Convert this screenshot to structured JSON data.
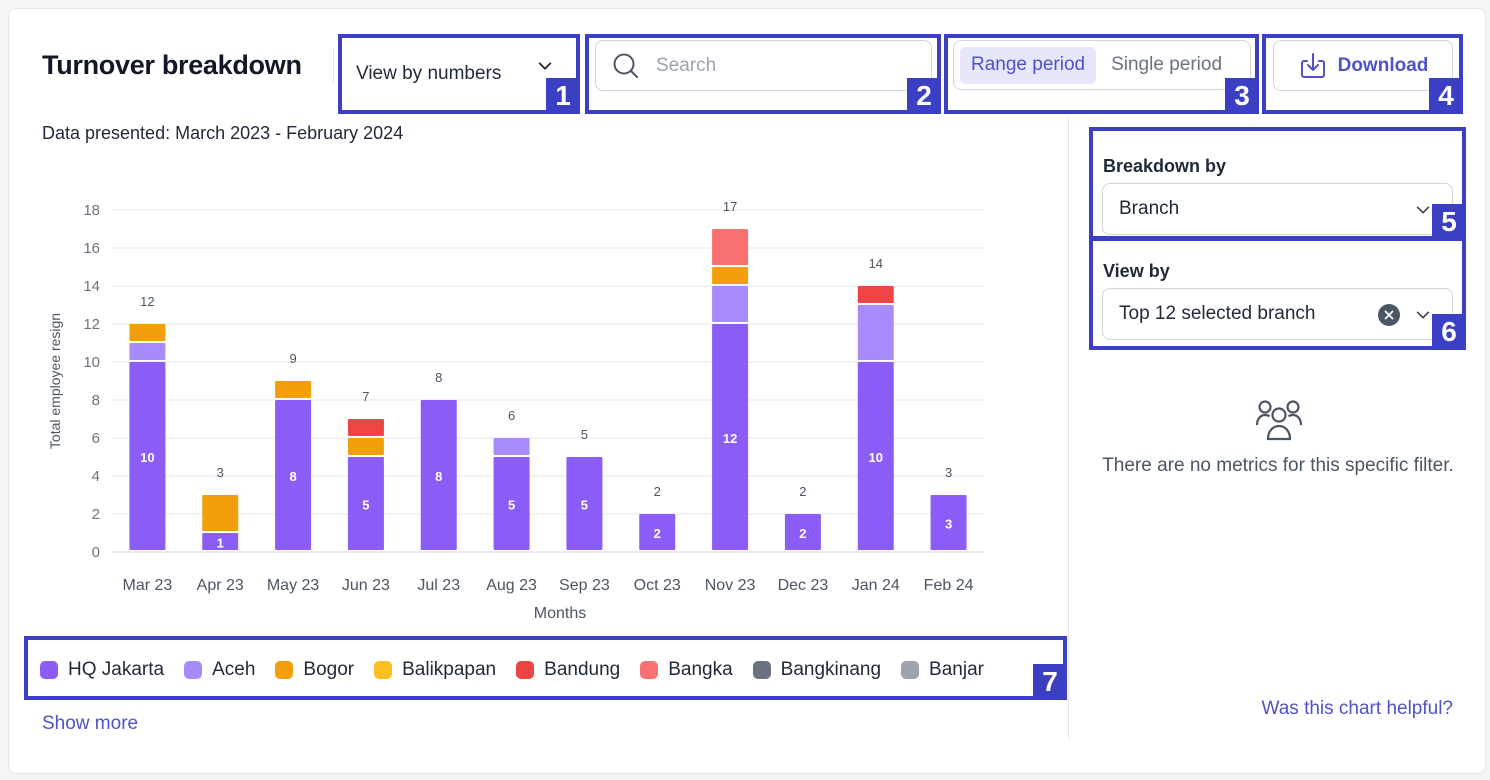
{
  "header": {
    "title": "Turnover breakdown",
    "view_dropdown": "View by numbers",
    "search_placeholder": "Search",
    "period_tabs": [
      "Range period",
      "Single period"
    ],
    "download_label": "Download"
  },
  "subtitle": "Data presented: March 2023 - February 2024",
  "markers": [
    "1",
    "2",
    "3",
    "4",
    "5",
    "6",
    "7"
  ],
  "chart_data": {
    "type": "bar",
    "stacked": true,
    "xlabel": "Months",
    "ylabel": "Total employee resign",
    "ylim": [
      0,
      18
    ],
    "yticks": [
      0,
      2,
      4,
      6,
      8,
      10,
      12,
      14,
      16,
      18
    ],
    "grid": true,
    "categories": [
      "Mar 23",
      "Apr 23",
      "May 23",
      "Jun 23",
      "Jul 23",
      "Aug 23",
      "Sep 23",
      "Oct 23",
      "Nov 23",
      "Dec 23",
      "Jan 24",
      "Feb 24"
    ],
    "series": [
      {
        "name": "HQ Jakarta",
        "color": "#8b5cf6",
        "values": [
          10,
          1,
          8,
          5,
          8,
          5,
          5,
          2,
          12,
          2,
          10,
          3
        ]
      },
      {
        "name": "Aceh",
        "color": "#a78bfa",
        "values": [
          1,
          0,
          0,
          0,
          0,
          1,
          0,
          0,
          2,
          0,
          3,
          0
        ]
      },
      {
        "name": "Bogor",
        "color": "#f59e0b",
        "values": [
          1,
          2,
          1,
          1,
          0,
          0,
          0,
          0,
          1,
          0,
          0,
          0
        ]
      },
      {
        "name": "Balikpapan",
        "color": "#fbbf24",
        "values": [
          0,
          0,
          0,
          0,
          0,
          0,
          0,
          0,
          0,
          0,
          0,
          0
        ]
      },
      {
        "name": "Bandung",
        "color": "#ef4444",
        "values": [
          0,
          0,
          0,
          1,
          0,
          0,
          0,
          0,
          0,
          0,
          1,
          0
        ]
      },
      {
        "name": "Bangka",
        "color": "#f87171",
        "values": [
          0,
          0,
          0,
          0,
          0,
          0,
          0,
          0,
          2,
          0,
          0,
          0
        ]
      },
      {
        "name": "Bangkinang",
        "color": "#6b7280",
        "values": [
          0,
          0,
          0,
          0,
          0,
          0,
          0,
          0,
          0,
          0,
          0,
          0
        ]
      },
      {
        "name": "Banjar",
        "color": "#9ca3af",
        "values": [
          0,
          0,
          0,
          0,
          0,
          0,
          0,
          0,
          0,
          0,
          0,
          0
        ]
      }
    ],
    "totals": [
      12,
      3,
      9,
      7,
      8,
      6,
      5,
      2,
      17,
      2,
      14,
      3
    ],
    "legend_placement": "bottom"
  },
  "legend_link": "Show more",
  "side_panel": {
    "breakdown_label": "Breakdown by",
    "breakdown_value": "Branch",
    "viewby_label": "View by",
    "viewby_value": "Top 12 selected branch",
    "empty_message": "There are no metrics for this specific filter.",
    "helpful_link": "Was this chart helpful?"
  }
}
